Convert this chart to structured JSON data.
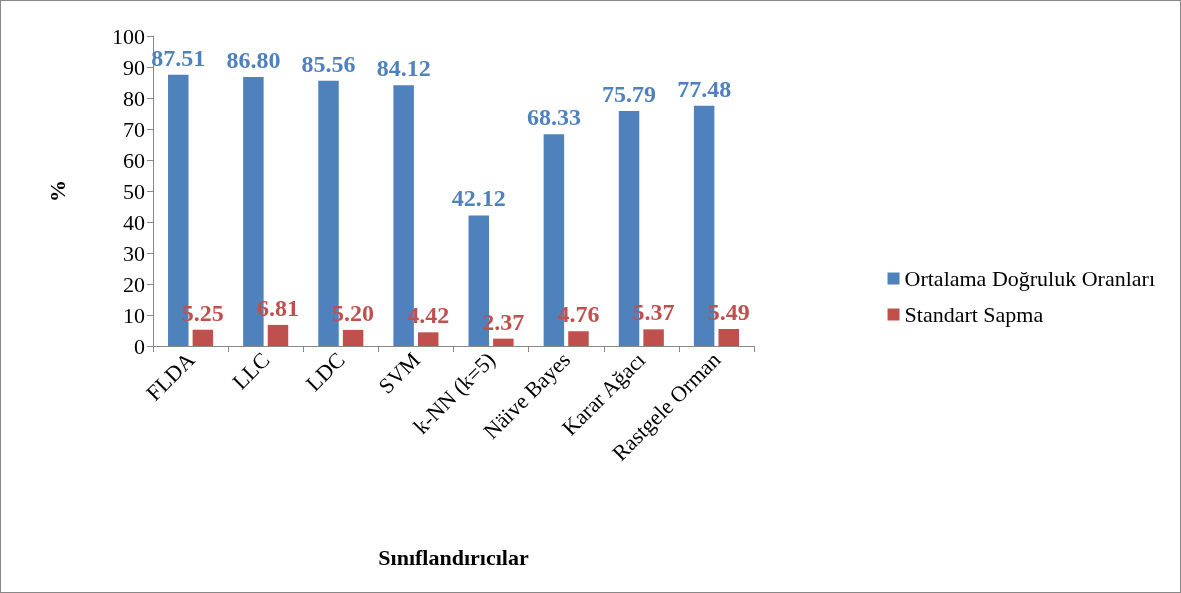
{
  "chart_data": {
    "type": "bar",
    "xlabel": "Sınıflandırıcılar",
    "ylabel": "%",
    "categories": [
      "FLDA",
      "LLC",
      "LDC",
      "SVM",
      "k-NN (k=5)",
      "Näive Bayes",
      "Karar Ağacı",
      "Rastgele Orman"
    ],
    "series": [
      {
        "name": "Ortalama Doğruluk Oranları",
        "color": "#4f81bd",
        "values": [
          87.51,
          86.8,
          85.56,
          84.12,
          42.12,
          68.33,
          75.79,
          77.48
        ],
        "value_labels": [
          "87.51",
          "86.80",
          "85.56",
          "84.12",
          "42.12",
          "68.33",
          "75.79",
          "77.48"
        ]
      },
      {
        "name": "Standart Sapma",
        "color": "#c0504d",
        "values": [
          5.25,
          6.81,
          5.2,
          4.42,
          2.37,
          4.76,
          5.37,
          5.49
        ],
        "value_labels": [
          "5.25",
          "6.81",
          "5.20",
          "4.42",
          "2.37",
          "4.76",
          "5.37",
          "5.49"
        ]
      }
    ],
    "ylim": [
      0,
      100
    ],
    "yticks": [
      0,
      10,
      20,
      30,
      40,
      50,
      60,
      70,
      80,
      90,
      100
    ],
    "grid": false,
    "legend": "right"
  }
}
